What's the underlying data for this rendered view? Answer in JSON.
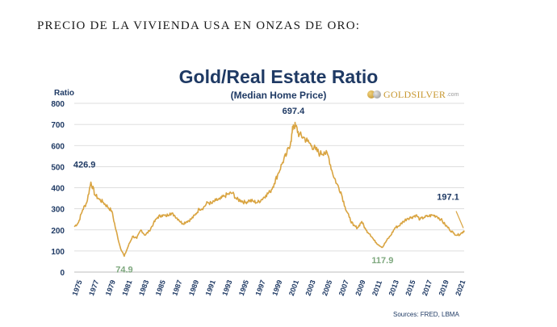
{
  "page": {
    "heading": "PRECIO DE LA VIVIENDA USA EN ONZAS DE ORO:"
  },
  "logo": {
    "name": "GOLDSILVER",
    "domain": ".com"
  },
  "sources": "Sources: FRED, LBMA",
  "colors": {
    "line": "#d9a441",
    "title": "#1f3a64",
    "grid": "#d3d3d3",
    "annotation_high": "#1f3a64",
    "annotation_low": "#7ea87e"
  },
  "chart_data": {
    "type": "line",
    "title": "Gold/Real Estate Ratio",
    "subtitle": "(Median Home Price)",
    "ylabel": "Ratio",
    "ylim": [
      0,
      800
    ],
    "yticks": [
      0,
      100,
      200,
      300,
      400,
      500,
      600,
      700,
      800
    ],
    "xlim": [
      1975,
      2021.8
    ],
    "xticks": [
      "1975",
      "1977",
      "1979",
      "1981",
      "1983",
      "1985",
      "1987",
      "1989",
      "1991",
      "1993",
      "1995",
      "1997",
      "1999",
      "2001",
      "2003",
      "2005",
      "2007",
      "2009",
      "2011",
      "2013",
      "2015",
      "2017",
      "2019",
      "2021"
    ],
    "grid": true,
    "series": [
      {
        "x": [
          1975,
          1975.5,
          1976,
          1976.5,
          1977,
          1977.5,
          1978,
          1978.5,
          1979,
          1979.5,
          1980,
          1980.5,
          1981,
          1981.5,
          1982,
          1982.5,
          1983,
          1983.5,
          1984,
          1984.5,
          1985,
          1985.5,
          1986,
          1986.5,
          1987,
          1987.5,
          1988,
          1988.5,
          1989,
          1989.5,
          1990,
          1990.5,
          1991,
          1991.5,
          1992,
          1992.5,
          1993,
          1993.5,
          1994,
          1994.5,
          1995,
          1995.5,
          1996,
          1996.5,
          1997,
          1997.5,
          1998,
          1998.5,
          1999,
          1999.5,
          2000,
          2000.5,
          2001,
          2001.3,
          2001.6,
          2002,
          2002.5,
          2003,
          2003.5,
          2004,
          2004.5,
          2005,
          2005.5,
          2006,
          2006.5,
          2007,
          2007.5,
          2008,
          2008.5,
          2009,
          2009.5,
          2010,
          2010.5,
          2011,
          2011.5,
          2012,
          2012.5,
          2013,
          2013.5,
          2014,
          2014.5,
          2015,
          2015.5,
          2016,
          2016.5,
          2017,
          2017.5,
          2018,
          2018.5,
          2019,
          2019.5,
          2020,
          2020.5,
          2021,
          2021.5,
          2021.8
        ],
        "values": [
          215,
          235,
          295,
          330,
          426.9,
          365,
          345,
          330,
          310,
          290,
          200,
          120,
          74.9,
          125,
          170,
          160,
          200,
          175,
          195,
          230,
          260,
          270,
          265,
          280,
          270,
          250,
          230,
          240,
          250,
          270,
          300,
          305,
          330,
          325,
          340,
          345,
          360,
          370,
          375,
          345,
          340,
          330,
          340,
          335,
          330,
          345,
          365,
          380,
          420,
          470,
          520,
          560,
          620,
          697.4,
          690,
          650,
          640,
          620,
          600,
          580,
          560,
          570,
          550,
          470,
          420,
          380,
          310,
          260,
          220,
          210,
          240,
          200,
          180,
          150,
          130,
          117.9,
          150,
          175,
          210,
          220,
          240,
          255,
          260,
          270,
          250,
          260,
          265,
          270,
          265,
          250,
          225,
          205,
          185,
          175,
          185,
          197.1
        ]
      }
    ],
    "annotations": [
      {
        "label": "426.9",
        "x": 1977,
        "y": 426.9,
        "kind": "high"
      },
      {
        "label": "74.9",
        "x": 1981,
        "y": 74.9,
        "kind": "low"
      },
      {
        "label": "697.4",
        "x": 2001.3,
        "y": 697.4,
        "kind": "high"
      },
      {
        "label": "117.9",
        "x": 2012,
        "y": 117.9,
        "kind": "low"
      },
      {
        "label": "197.1",
        "x": 2021.8,
        "y": 197.1,
        "kind": "high"
      }
    ]
  }
}
